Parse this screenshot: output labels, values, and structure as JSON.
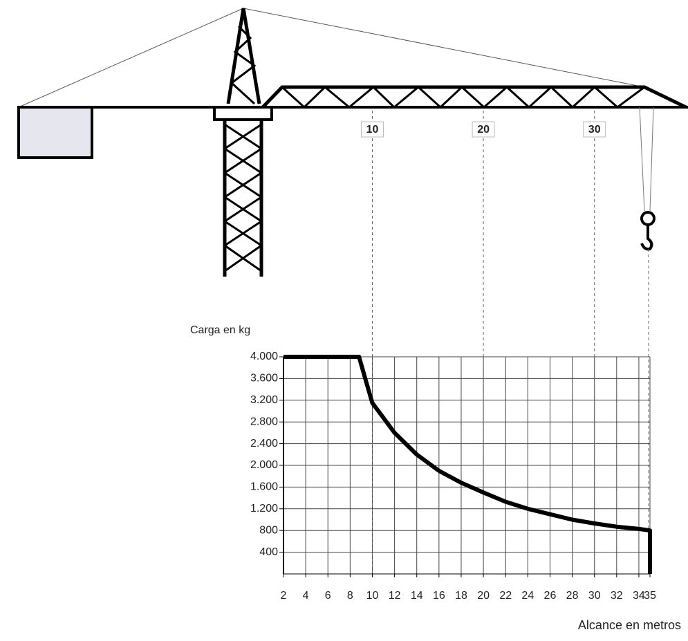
{
  "chart_data": {
    "type": "line",
    "y_label": "Carga en kg",
    "x_label": "Alcance en metros",
    "x": [
      2,
      8.8,
      9.5,
      10,
      12,
      14,
      16,
      18,
      20,
      22,
      24,
      26,
      28,
      30,
      32,
      34,
      35,
      35
    ],
    "values": [
      4000,
      4000,
      3500,
      3150,
      2600,
      2200,
      1900,
      1680,
      1500,
      1330,
      1200,
      1100,
      1000,
      930,
      870,
      830,
      800,
      0
    ],
    "color": "#000000",
    "xlim": [
      2,
      35
    ],
    "ylim": [
      0,
      4000
    ],
    "xticks": [
      2,
      4,
      6,
      8,
      10,
      12,
      14,
      16,
      18,
      20,
      22,
      24,
      26,
      28,
      30,
      32,
      34,
      35
    ],
    "yticks": [
      {
        "value": 4000,
        "label": "4.000"
      },
      {
        "value": 3600,
        "label": "3.600"
      },
      {
        "value": 3200,
        "label": "3.200"
      },
      {
        "value": 2800,
        "label": "2.800"
      },
      {
        "value": 2400,
        "label": "2.400"
      },
      {
        "value": 2000,
        "label": "2.000"
      },
      {
        "value": 1600,
        "label": "1.600"
      },
      {
        "value": 1200,
        "label": "1.200"
      },
      800,
      400
    ],
    "grid": true,
    "jib_marks": [
      10,
      20,
      30
    ]
  }
}
